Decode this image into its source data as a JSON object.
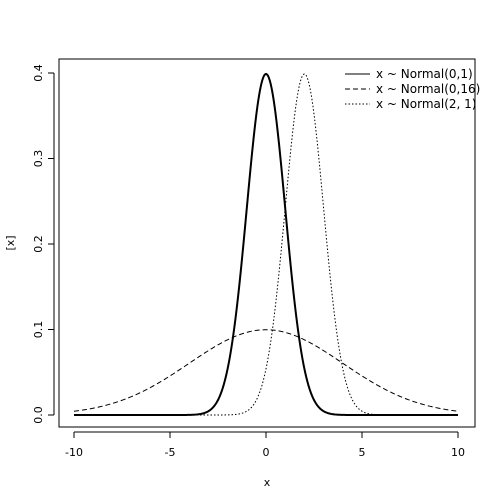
{
  "chart_data": {
    "type": "line",
    "title": "",
    "xlabel": "x",
    "ylabel": "[x]",
    "xlim": [
      -10,
      10
    ],
    "ylim": [
      0,
      0.4
    ],
    "x_ticks": [
      -10,
      -5,
      0,
      5,
      10
    ],
    "y_ticks": [
      0.0,
      0.1,
      0.2,
      0.3,
      0.4
    ],
    "x_tick_labels": [
      "-10",
      "-5",
      "0",
      "5",
      "10"
    ],
    "y_tick_labels": [
      "0.0",
      "0.1",
      "0.2",
      "0.3",
      "0.4"
    ],
    "grid": false,
    "legend_position": "top-right",
    "series": [
      {
        "name": "x ~ Normal(0,1)",
        "line_style": "solid",
        "line_width": "thick",
        "color": "#000000",
        "x": [
          -10,
          -4,
          -3.5,
          -3,
          -2.5,
          -2,
          -1.5,
          -1,
          -0.5,
          0,
          0.5,
          1,
          1.5,
          2,
          2.5,
          3,
          3.5,
          4,
          10
        ],
        "values": [
          0.0,
          0.0001,
          0.0009,
          0.0044,
          0.0175,
          0.054,
          0.1295,
          0.242,
          0.3521,
          0.3989,
          0.3521,
          0.242,
          0.1295,
          0.054,
          0.0175,
          0.0044,
          0.0009,
          0.0001,
          0.0
        ]
      },
      {
        "name": "x ~ Normal(0,16)",
        "line_style": "dashed",
        "line_width": "thin",
        "color": "#000000",
        "x": [
          -10,
          -9,
          -8,
          -7,
          -6,
          -5,
          -4,
          -3,
          -2,
          -1,
          0,
          1,
          2,
          3,
          4,
          5,
          6,
          7,
          8,
          9,
          10
        ],
        "values": [
          0.0044,
          0.008,
          0.0135,
          0.0216,
          0.0324,
          0.0457,
          0.0605,
          0.0753,
          0.088,
          0.0967,
          0.0997,
          0.0967,
          0.088,
          0.0753,
          0.0605,
          0.0457,
          0.0324,
          0.0216,
          0.0135,
          0.008,
          0.0044
        ]
      },
      {
        "name": "x ~ Normal(2, 1)",
        "line_style": "dotted",
        "line_width": "thin",
        "color": "#000000",
        "x": [
          -10,
          -2,
          -1.5,
          -1,
          -0.5,
          0,
          0.5,
          1,
          1.5,
          2,
          2.5,
          3,
          3.5,
          4,
          4.5,
          5,
          5.5,
          6,
          10
        ],
        "values": [
          0.0,
          0.0001,
          0.0009,
          0.0044,
          0.0175,
          0.054,
          0.1295,
          0.242,
          0.3521,
          0.3989,
          0.3521,
          0.242,
          0.1295,
          0.054,
          0.0175,
          0.0044,
          0.0009,
          0.0001,
          0.0
        ]
      }
    ]
  }
}
